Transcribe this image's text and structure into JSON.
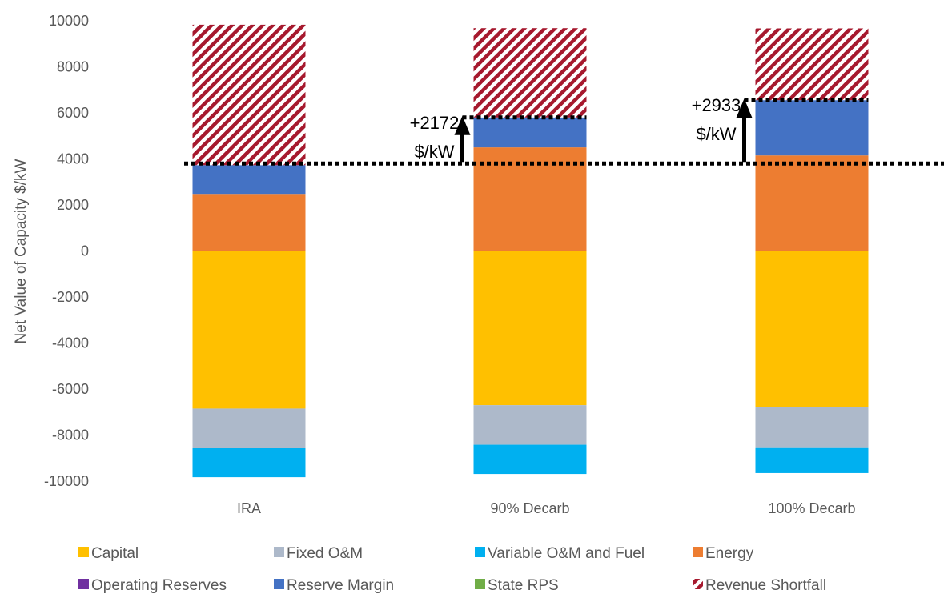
{
  "chart_data": {
    "type": "bar",
    "stacked": true,
    "ylabel": "Net Value of Capacity $/kW",
    "ylim": [
      -10000,
      10000
    ],
    "yticks": [
      "10000",
      "8000",
      "6000",
      "4000",
      "2000",
      "0",
      "-2000",
      "-4000",
      "-6000",
      "-8000",
      "-10000"
    ],
    "ytick_values": [
      10000,
      8000,
      6000,
      4000,
      2000,
      0,
      -2000,
      -4000,
      -6000,
      -8000,
      -10000
    ],
    "grid": false,
    "legend_position": "bottom",
    "categories": [
      "IRA",
      "90% Decarb",
      "100% Decarb"
    ],
    "series": [
      {
        "name": "Capital",
        "color": "#FFC000",
        "values": [
          -6850,
          -6700,
          -6800
        ]
      },
      {
        "name": "Fixed O&M",
        "color": "#ADB9CA",
        "values": [
          -1700,
          -1720,
          -1730
        ]
      },
      {
        "name": "Variable O&M and Fuel",
        "color": "#00B0F0",
        "values": [
          -1280,
          -1270,
          -1120
        ]
      },
      {
        "name": "Energy",
        "color": "#ED7D31",
        "values": [
          2480,
          4500,
          4150
        ]
      },
      {
        "name": "Operating Reserves",
        "color": "#7030A0",
        "values": [
          0,
          0,
          0
        ]
      },
      {
        "name": "Reserve Margin",
        "color": "#4472C4",
        "values": [
          1250,
          1300,
          2400
        ]
      },
      {
        "name": "State RPS",
        "color": "#70AD47",
        "values": [
          0,
          0,
          0
        ]
      },
      {
        "name": "Revenue Shortfall",
        "color": "#A6192E",
        "pattern": "hatched",
        "values": [
          6100,
          3880,
          3120
        ]
      }
    ],
    "reference_line": {
      "y": 3800,
      "style": "dotted"
    },
    "annotations": [
      {
        "category": "90% Decarb",
        "line1": "+2172",
        "line2": "$/kW",
        "from": 3800,
        "to": 5800
      },
      {
        "category": "100% Decarb",
        "line1": "+2933",
        "line2": "$/kW",
        "from": 3800,
        "to": 6550
      }
    ],
    "legend": [
      [
        "Capital",
        "Fixed O&M",
        "Variable O&M and Fuel",
        "Energy"
      ],
      [
        "Operating Reserves",
        "Reserve Margin",
        "State RPS",
        "Revenue Shortfall"
      ]
    ]
  }
}
